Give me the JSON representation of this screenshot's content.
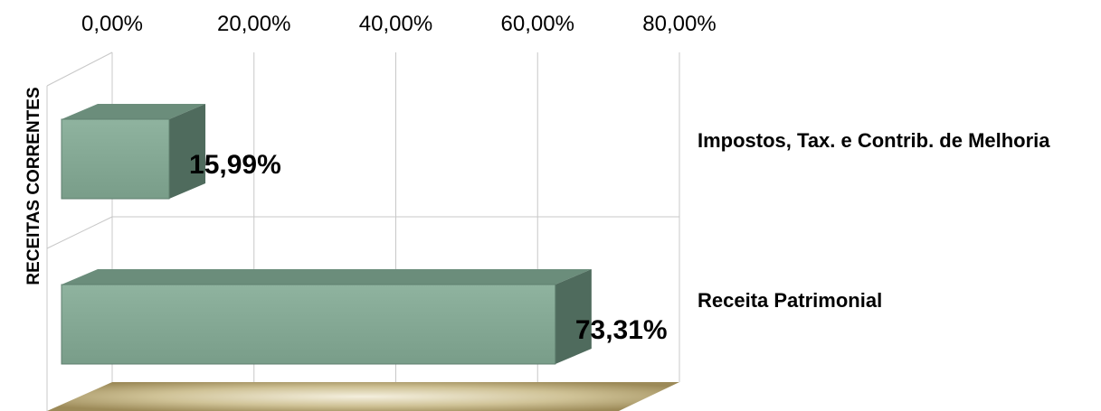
{
  "chart_data": {
    "type": "bar",
    "orientation": "horizontal",
    "three_d": true,
    "ylabel": "RECEITAS CORRENTES",
    "xlim": [
      0,
      80
    ],
    "x_ticks": [
      "0,00%",
      "20,00%",
      "40,00%",
      "60,00%",
      "80,00%"
    ],
    "categories": [
      "Impostos, Tax. e Contrib. de Melhoria",
      "Receita Patrimonial"
    ],
    "values": [
      15.99,
      73.31
    ],
    "value_labels": [
      "15,99%",
      "73,31%"
    ],
    "grid": true,
    "colors": {
      "bar_front": "#84a894",
      "bar_top": "#6b8d7b",
      "bar_side": "#4f6b5d",
      "floor": "#c8b98a",
      "gridline": "#c8c8c8"
    }
  }
}
